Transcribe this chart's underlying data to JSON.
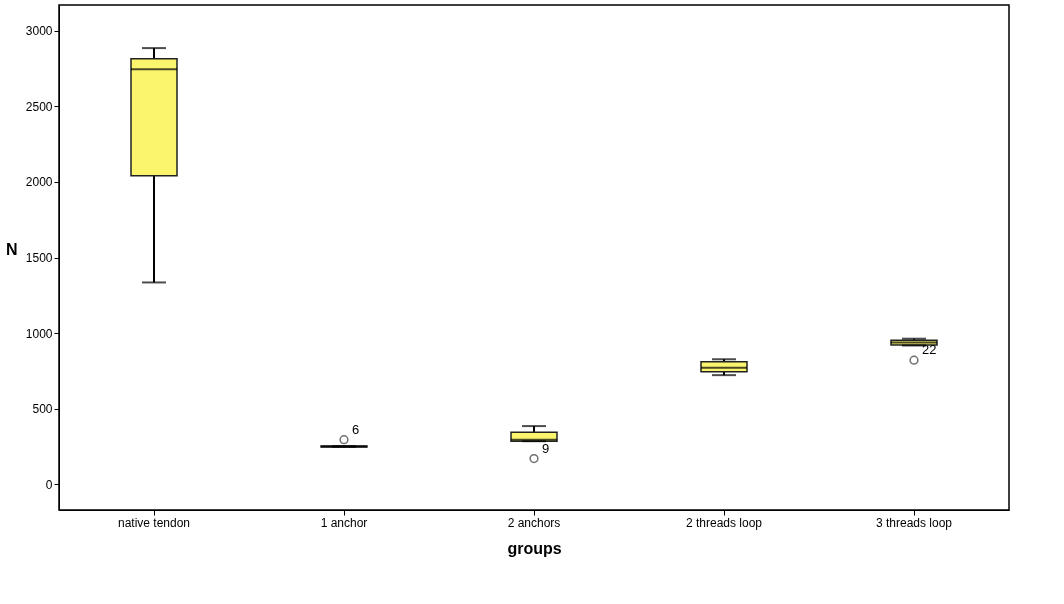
{
  "chart_data": {
    "type": "box",
    "xlabel": "groups",
    "ylabel": "N",
    "categories": [
      "native tendon",
      "1 anchor",
      "2 anchors",
      "2 threads loop",
      "3 threads loop"
    ],
    "series": [
      {
        "color": "#fbf56e",
        "boxes": [
          {
            "low": 1335,
            "q1": 2040,
            "median": 2745,
            "q3": 2815,
            "high": 2885
          },
          {
            "low": 250,
            "q1": 246,
            "median": 250,
            "q3": 254,
            "high": 250,
            "outliers": [
              295
            ]
          },
          {
            "low": 285,
            "q1": 285,
            "median": 295,
            "q3": 345,
            "high": 385,
            "outliers": [
              170
            ]
          },
          {
            "low": 722,
            "q1": 745,
            "median": 770,
            "q3": 810,
            "high": 827
          },
          {
            "low": 918,
            "q1": 921,
            "median": 938,
            "q3": 952,
            "high": 963,
            "outliers": [
              821
            ]
          }
        ]
      }
    ],
    "ylim": [
      -170,
      3170
    ],
    "yticks": [
      0,
      500,
      1000,
      1500,
      2000,
      2500,
      3000
    ],
    "grid": false,
    "annotations": [
      "6",
      "9",
      "22"
    ]
  }
}
